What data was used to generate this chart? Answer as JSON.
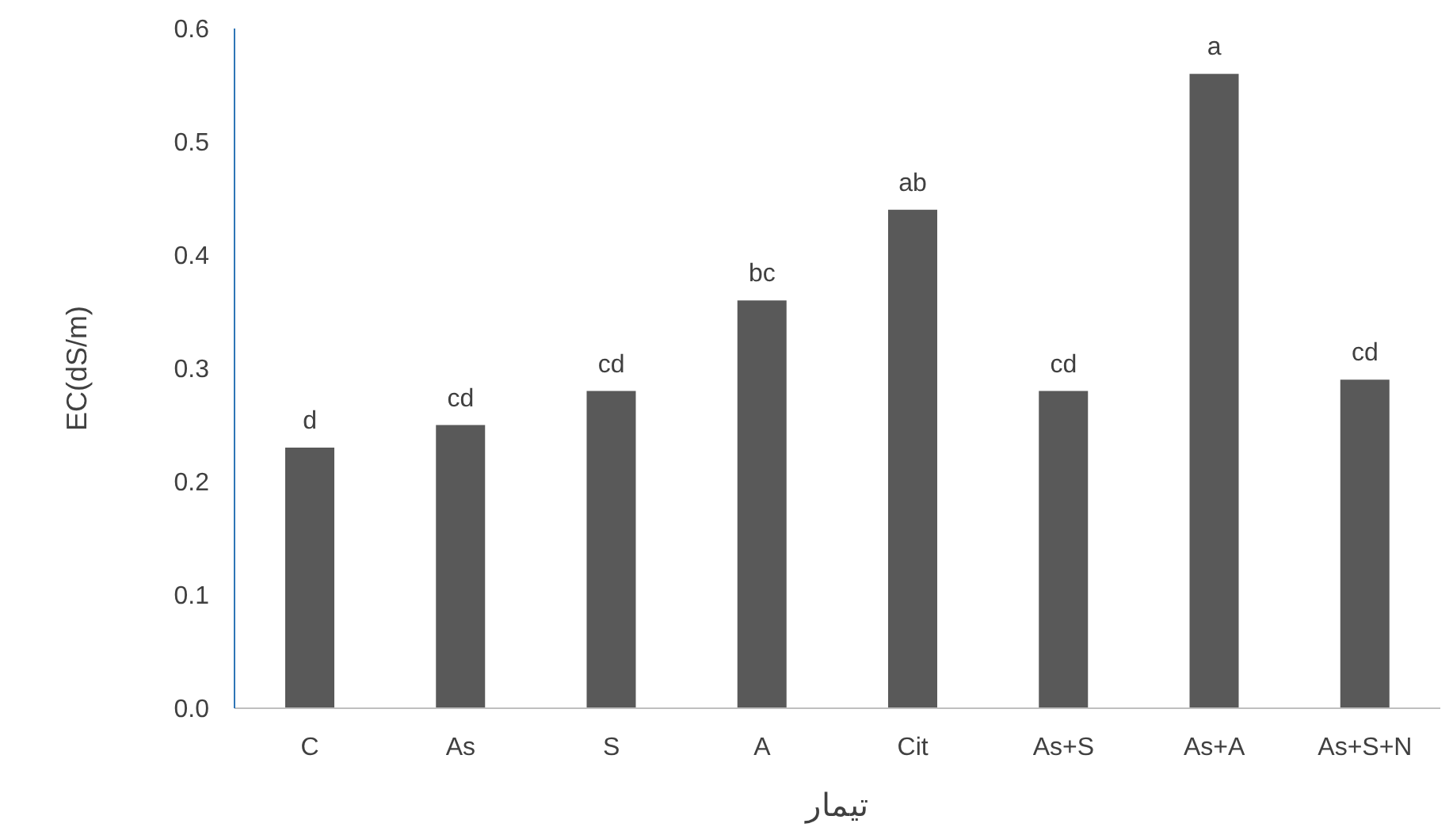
{
  "chart_data": {
    "type": "bar",
    "ylabel": "EC(dS/m)",
    "xlabel": "تیمار",
    "categories": [
      "C",
      "As",
      "S",
      "A",
      "Cit",
      "As+S",
      "As+A",
      "As+S+N"
    ],
    "values": [
      0.23,
      0.25,
      0.28,
      0.36,
      0.44,
      0.28,
      0.56,
      0.29
    ],
    "color": "#595959",
    "ylim": [
      0,
      0.6
    ],
    "yticks": [
      {
        "value": 0,
        "label": "0.0"
      },
      0.1,
      0.2,
      0.3,
      0.4,
      0.5,
      0.6
    ],
    "grid": false,
    "legend": false,
    "annotations": [
      {
        "text": "d",
        "x": "C",
        "y": 0.23
      },
      {
        "text": "cd",
        "x": "As",
        "y": 0.25
      },
      {
        "text": "cd",
        "x": "S",
        "y": 0.28
      },
      {
        "text": "bc",
        "x": "A",
        "y": 0.36
      },
      {
        "text": "ab",
        "x": "Cit",
        "y": 0.44
      },
      {
        "text": "cd",
        "x": "As+S",
        "y": 0.28
      },
      {
        "text": "a",
        "x": "As+A",
        "y": 0.56
      },
      {
        "text": "cd",
        "x": "As+S+N",
        "y": 0.29
      }
    ]
  }
}
